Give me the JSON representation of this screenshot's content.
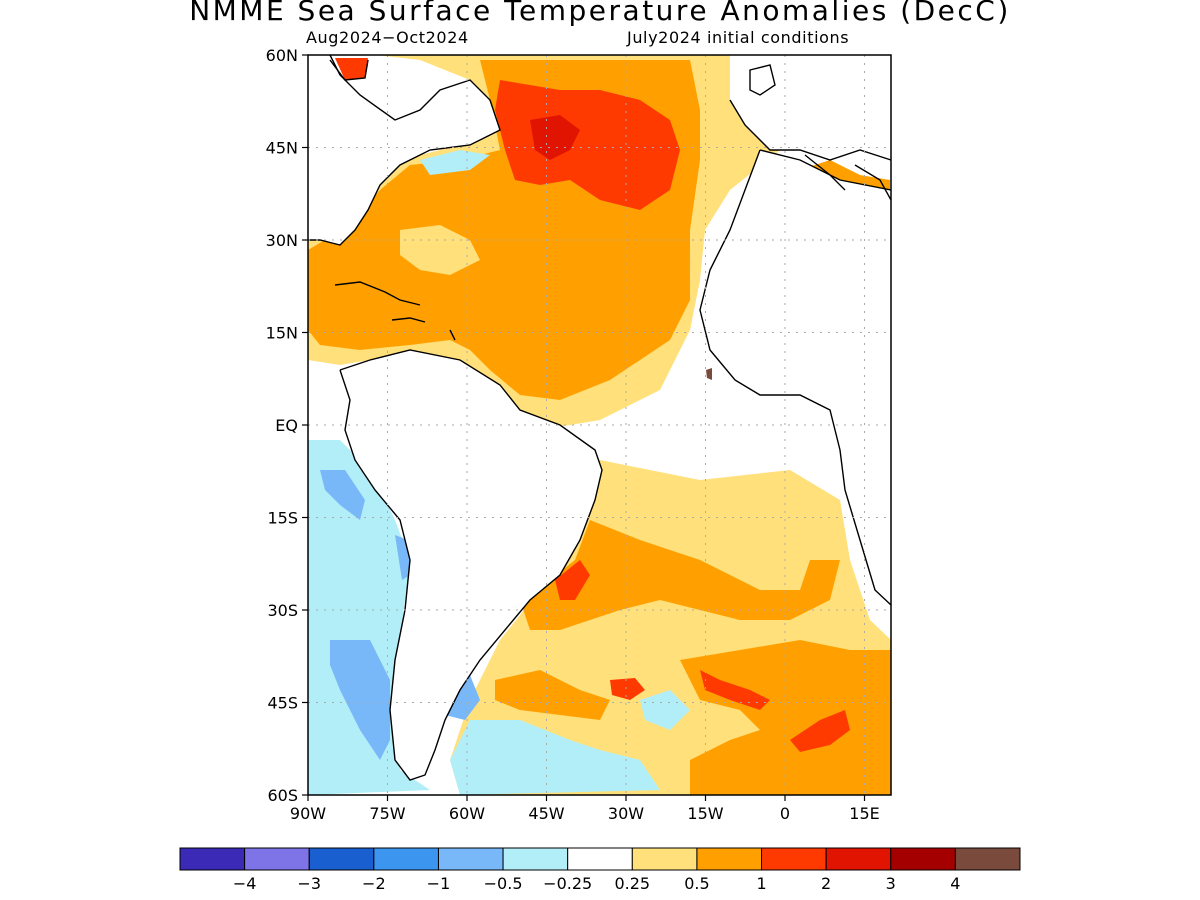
{
  "title": "NMME Sea Surface Temperature Anomalies (DecC)",
  "period": "Aug2024−Oct2024",
  "init": "July2024 initial conditions",
  "lat_labels": [
    "60N",
    "45N",
    "30N",
    "15N",
    "EQ",
    "15S",
    "30S",
    "45S",
    "60S"
  ],
  "lon_labels": [
    "90W",
    "75W",
    "60W",
    "45W",
    "30W",
    "15W",
    "0",
    "15E"
  ],
  "colorbar": {
    "labels": [
      "−4",
      "−3",
      "−2",
      "−1",
      "−0.5",
      "−0.25",
      "0.25",
      "0.5",
      "1",
      "2",
      "3",
      "4"
    ],
    "colors": [
      "#3a2ab6",
      "#7f73e8",
      "#1a5fd0",
      "#3c96f0",
      "#78b8f8",
      "#b2eef8",
      "#ffffff",
      "#ffe07a",
      "#ffa000",
      "#ff3a00",
      "#e01400",
      "#a40000",
      "#7a4a3c"
    ]
  },
  "map": {
    "extent": {
      "lon": [
        -90,
        20
      ],
      "lat": [
        -60,
        60
      ]
    },
    "grid": "dotted",
    "colors": {
      "neg05": "#b2eef8",
      "neg1": "#78b8f8",
      "neg2": "#3c96f0",
      "pos025": "#ffe07a",
      "pos05": "#ffa000",
      "pos1": "#ff3a00",
      "pos2": "#e01400",
      "brown": "#7a4a3c",
      "land": "#ffffff",
      "coast": "#000000"
    }
  }
}
